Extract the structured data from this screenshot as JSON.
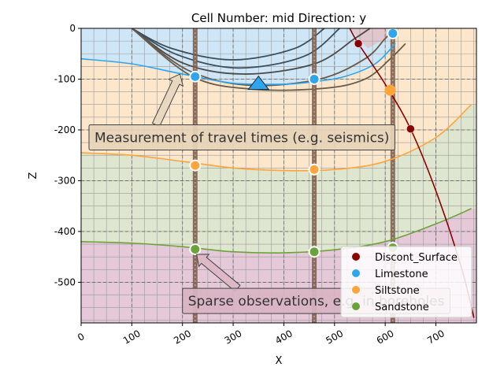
{
  "chart_data": {
    "type": "scatter",
    "title": "Cell Number: mid Direction: y",
    "xlabel": "X",
    "ylabel": "Z",
    "xlim": [
      0,
      780
    ],
    "ylim": [
      -580,
      0
    ],
    "xticks": [
      0,
      100,
      200,
      300,
      400,
      500,
      600,
      700
    ],
    "yticks": [
      0,
      -100,
      -200,
      -300,
      -400,
      -500
    ],
    "grid": true,
    "legend_position": "bottom-right",
    "colors": {
      "Discont_Surface": "#8b0000",
      "Limestone": "#2ea6ee",
      "Siltstone": "#ffa53b",
      "Sandstone": "#6ba33a",
      "layer_top": "#cfe6f7",
      "layer_2": "#fde7cc",
      "layer_3": "#dfe6cf",
      "layer_4": "#e5c9d9"
    },
    "series": [
      {
        "name": "Discont_Surface",
        "x": [
          547,
          650
        ],
        "y": [
          -30,
          -198
        ]
      },
      {
        "name": "Limestone",
        "x": [
          225,
          460,
          615
        ],
        "y": [
          -95,
          -100,
          -10
        ]
      },
      {
        "name": "Siltstone",
        "x": [
          225,
          460
        ],
        "y": [
          -270,
          -278
        ]
      },
      {
        "name": "Sandstone",
        "x": [
          225,
          460,
          615
        ],
        "y": [
          -435,
          -440,
          -432
        ]
      }
    ],
    "orientation_markers": [
      {
        "surface": "Limestone",
        "x": 350,
        "y": -108,
        "shape": "triangle"
      },
      {
        "surface": "Siltstone",
        "x": 610,
        "y": -122,
        "shape": "circle"
      }
    ],
    "contact_lines": [
      {
        "name": "Limestone",
        "x": [
          0,
          100,
          200,
          300,
          400,
          460,
          520,
          580,
          620
        ],
        "y": [
          -60,
          -70,
          -90,
          -108,
          -110,
          -105,
          -95,
          -70,
          -30
        ]
      },
      {
        "name": "Siltstone",
        "x": [
          0,
          100,
          200,
          300,
          400,
          500,
          600,
          700,
          770
        ],
        "y": [
          -245,
          -250,
          -262,
          -275,
          -280,
          -278,
          -262,
          -215,
          -150
        ]
      },
      {
        "name": "Sandstone",
        "x": [
          0,
          100,
          200,
          300,
          400,
          500,
          600,
          700,
          770
        ],
        "y": [
          -420,
          -423,
          -430,
          -440,
          -442,
          -436,
          -420,
          -385,
          -355
        ]
      },
      {
        "name": "Discont_Surface",
        "x": [
          530,
          547,
          600,
          650,
          700,
          750,
          775
        ],
        "y": [
          0,
          -30,
          -110,
          -198,
          -320,
          -470,
          -570
        ]
      }
    ],
    "annotations": [
      {
        "text": "Measurement of travel times (e.g. seismics)",
        "x": 175,
        "y": -205,
        "arrow_to_x": 195,
        "arrow_to_y": -90
      },
      {
        "text": "Sparse observations, e.g. in boreholes",
        "x": 310,
        "y": -535,
        "arrow_to_x": 228,
        "arrow_to_y": -445
      }
    ]
  }
}
